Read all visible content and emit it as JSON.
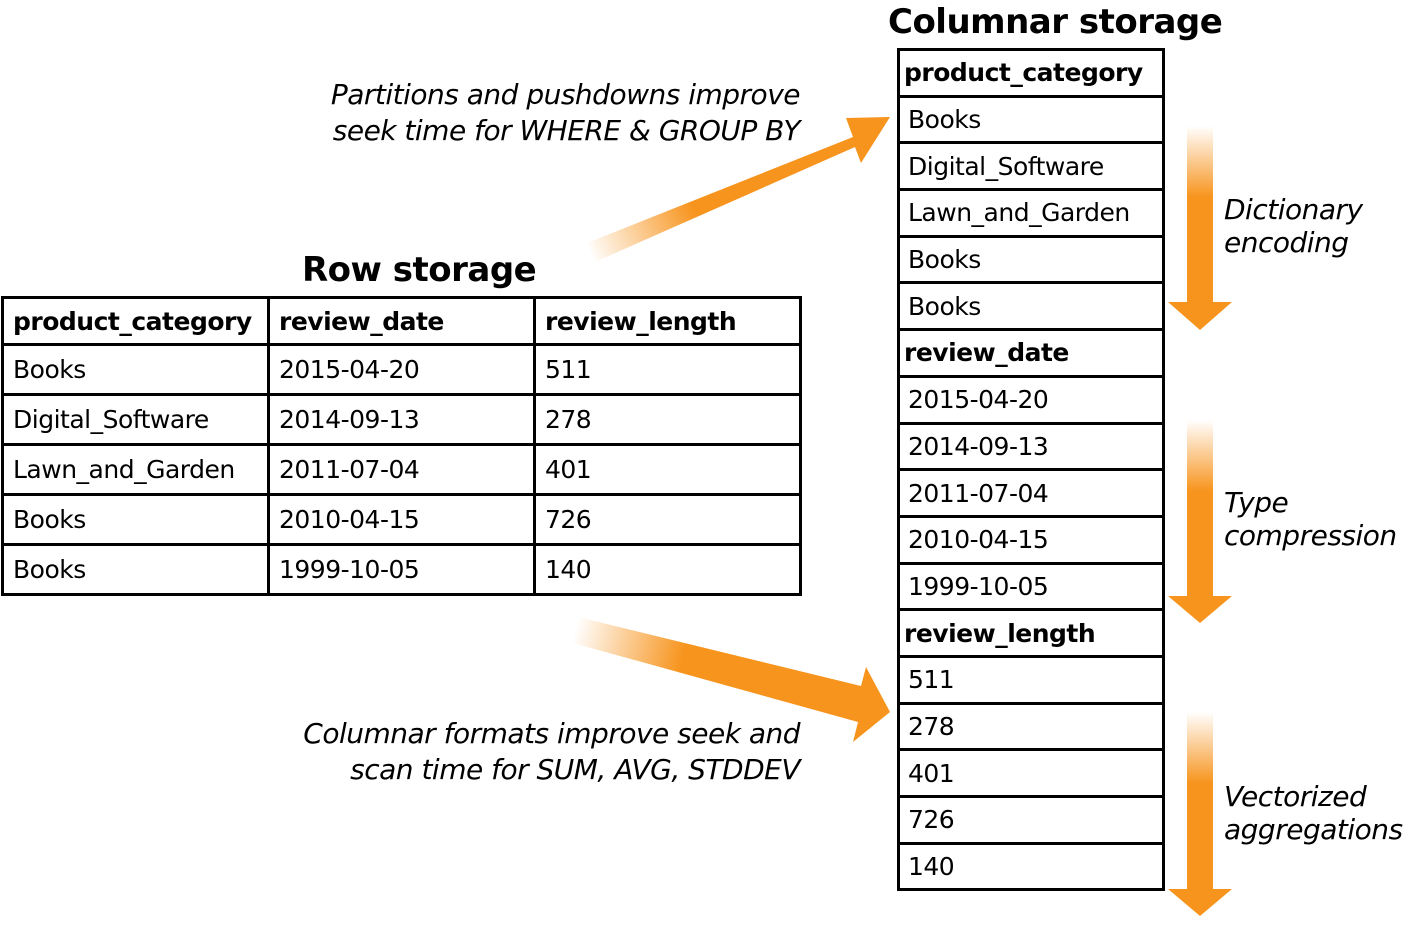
{
  "row_storage": {
    "title": "Row storage",
    "columns": [
      "product_category",
      "review_date",
      "review_length"
    ],
    "rows": [
      [
        "Books",
        "2015-04-20",
        "511"
      ],
      [
        "Digital_Software",
        "2014-09-13",
        "278"
      ],
      [
        "Lawn_and_Garden",
        "2011-07-04",
        "401"
      ],
      [
        "Books",
        "2010-04-15",
        "726"
      ],
      [
        "Books",
        "1999-10-05",
        "140"
      ]
    ]
  },
  "columnar_storage": {
    "title": "Columnar storage",
    "groups": [
      {
        "header": "product_category",
        "values": [
          "Books",
          "Digital_Software",
          "Lawn_and_Garden",
          "Books",
          "Books"
        ]
      },
      {
        "header": "review_date",
        "values": [
          "2015-04-20",
          "2014-09-13",
          "2011-07-04",
          "2010-04-15",
          "1999-10-05"
        ]
      },
      {
        "header": "review_length",
        "values": [
          "511",
          "278",
          "401",
          "726",
          "140"
        ]
      }
    ]
  },
  "annotations": {
    "top": [
      "Partitions and pushdowns improve",
      "seek time for WHERE & GROUP BY"
    ],
    "bottom": [
      "Columnar formats improve seek and",
      "scan time for SUM, AVG, STDDEV"
    ],
    "dictionary": [
      "Dictionary",
      "encoding"
    ],
    "type": [
      "Type",
      "compression"
    ],
    "vectorized": [
      "Vectorized",
      "aggregations"
    ]
  },
  "colors": {
    "arrow": "#F7941D",
    "line": "#000000",
    "background": "#FFFFFF"
  }
}
